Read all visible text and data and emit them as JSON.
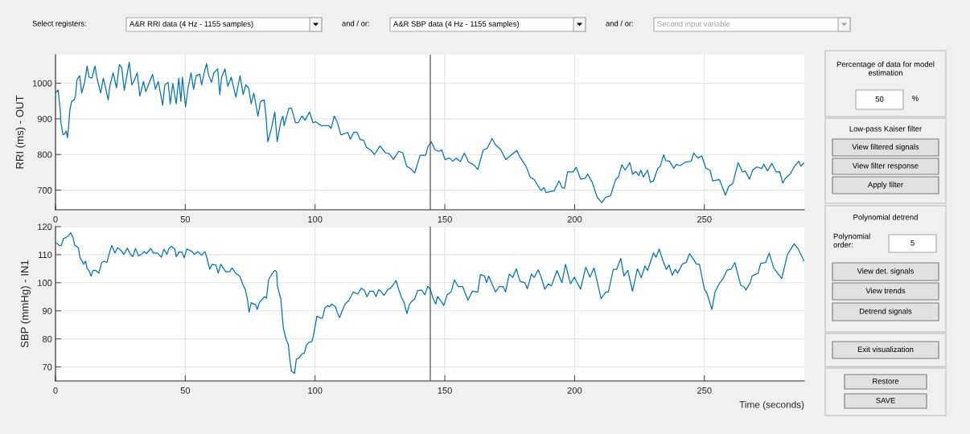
{
  "chart_data": [
    {
      "type": "line",
      "ylabel": "RRI (ms) - OUT",
      "color": "#0072bd",
      "x": [
        0,
        1.0,
        1.8,
        2.1,
        2.9,
        3.6,
        4.1,
        4.6,
        5.0,
        5.5,
        6.2,
        7.2,
        7.7,
        8.3,
        9.3,
        10.1,
        11.2,
        12.2,
        12.9,
        14.0,
        15.2,
        16.0,
        17.4,
        18.4,
        19.3,
        20.3,
        20.9,
        22.2,
        23.5,
        24.6,
        25.5,
        26.5,
        27.7,
        28.4,
        29.4,
        30.2,
        31.5,
        32.5,
        33.9,
        34.8,
        35.8,
        37.4,
        38.5,
        39.6,
        41.3,
        42.1,
        43.4,
        44.2,
        45.2,
        46.5,
        47.5,
        48.3,
        48.9,
        50.1,
        51.1,
        52.2,
        53.2,
        54.2,
        55.6,
        56.3,
        57.3,
        58.2,
        58.9,
        60.1,
        61.0,
        62.5,
        63.3,
        64.0,
        65.3,
        66.4,
        67.7,
        69.5,
        71.1,
        72.3,
        73.3,
        74.4,
        75.4,
        76.4,
        78.0,
        79.0,
        80.4,
        81.1,
        81.8,
        83.1,
        84.5,
        85.4,
        86.8,
        87.6,
        88.1,
        88.8,
        89.9,
        90.9,
        92.5,
        93.5,
        95.0,
        96.1,
        97.9,
        99.2,
        100.2,
        102.3,
        105.4,
        106.2,
        107.4,
        108.5,
        110.0,
        112.6,
        113.6,
        114.9,
        116.2,
        117.3,
        118.8,
        119.8,
        121.4,
        122.9,
        125.0,
        127.1,
        128.6,
        130.2,
        132.2,
        133.8,
        135.3,
        136.9,
        138.4,
        140.5,
        142.6,
        143.6,
        144.8,
        146.2,
        147.7,
        148.8,
        150.1,
        151.8,
        153.1,
        154.4,
        156.0,
        157.5,
        159.1,
        161.2,
        162.7,
        164.8,
        166.3,
        168.2,
        169.4,
        171.5,
        173.5,
        175.6,
        177.7,
        179.2,
        181.3,
        182.9,
        184.4,
        187.0,
        188.2,
        189.0,
        192.1,
        194.0,
        195.2,
        196.1,
        197.3,
        199.4,
        200.6,
        202.3,
        204.0,
        205.0,
        206.8,
        208.7,
        210.5,
        212.0,
        213.8,
        215.9,
        216.9,
        218.2,
        219.5,
        221.3,
        222.3,
        223.7,
        224.7,
        225.5,
        226.5,
        228.1,
        229.2,
        230.4,
        232.0,
        233.0,
        234.3,
        235.1,
        236.6,
        238.2,
        239.2,
        240.7,
        242.8,
        244.9,
        245.9,
        247.5,
        249.0,
        250.6,
        252.2,
        253.2,
        255.8,
        258.1,
        259.4,
        260.9,
        263.0,
        264.7,
        265.7,
        267.4,
        268.6,
        270.2,
        272.2,
        272.9,
        274.3,
        276.0,
        277.7,
        279.0,
        280.2,
        281.2,
        283.1,
        284.9,
        286.4,
        287.2,
        288.3
      ],
      "values": [
        972,
        981,
        927,
        889,
        855,
        858,
        866,
        847,
        874,
        923,
        949,
        953,
        964,
        1010,
        1021,
        972,
        1002,
        1048,
        1017,
        1014,
        1048,
        1014,
        972,
        1014,
        987,
        953,
        991,
        1029,
        987,
        1052,
        1045,
        980,
        1029,
        1059,
        995,
        1005,
        1029,
        964,
        1005,
        976,
        995,
        1025,
        983,
        1005,
        938,
        995,
        1002,
        942,
        999,
        942,
        1014,
        949,
        1017,
        934,
        987,
        1029,
        983,
        1021,
        1025,
        995,
        1029,
        1055,
        1025,
        1002,
        1029,
        1040,
        968,
        1017,
        1040,
        991,
        1017,
        961,
        1021,
        968,
        995,
        987,
        942,
        972,
        908,
        949,
        953,
        908,
        836,
        870,
        919,
        836,
        892,
        908,
        881,
        900,
        930,
        930,
        889,
        889,
        908,
        896,
        919,
        889,
        892,
        881,
        881,
        873,
        908,
        892,
        855,
        862,
        843,
        862,
        862,
        843,
        839,
        820,
        813,
        800,
        824,
        805,
        802,
        786,
        809,
        805,
        767,
        760,
        748,
        798,
        798,
        824,
        836,
        813,
        809,
        813,
        786,
        790,
        781,
        790,
        780,
        804,
        779,
        771,
        758,
        813,
        817,
        845,
        828,
        814,
        786,
        799,
        811,
        790,
        767,
        736,
        730,
        699,
        707,
        693,
        698,
        726,
        707,
        705,
        751,
        751,
        764,
        731,
        733,
        745,
        722,
        680,
        665,
        680,
        684,
        731,
        737,
        771,
        756,
        777,
        745,
        752,
        741,
        756,
        737,
        756,
        722,
        726,
        760,
        767,
        799,
        783,
        781,
        761,
        772,
        769,
        779,
        781,
        804,
        790,
        796,
        761,
        756,
        726,
        730,
        686,
        711,
        718,
        777,
        751,
        754,
        731,
        756,
        765,
        761,
        773,
        754,
        775,
        751,
        752,
        720,
        733,
        746,
        769,
        781,
        767,
        776
      ],
      "xlim": [
        0,
        288.5
      ],
      "ylim": [
        645,
        1080
      ],
      "xticks": [
        0,
        50,
        100,
        150,
        200,
        250
      ],
      "yticks": [
        700,
        800,
        900,
        1000
      ],
      "grid": true,
      "ref_lines": [
        {
          "axis": "x",
          "value": 144.4,
          "color": "#404040"
        }
      ]
    },
    {
      "type": "line",
      "ylabel": "SBP (mmHg) - IN1",
      "xlabel": "Time (seconds)",
      "color": "#0072bd",
      "x": [
        0,
        0.8,
        1.5,
        2.3,
        3.1,
        4.1,
        5.0,
        5.9,
        6.7,
        7.4,
        8.8,
        9.5,
        10.3,
        10.8,
        11.6,
        12.2,
        12.9,
        13.7,
        14.5,
        15.5,
        16.7,
        17.8,
        18.8,
        19.8,
        20.9,
        21.7,
        22.9,
        23.9,
        25.3,
        26.3,
        27.7,
        28.9,
        29.8,
        30.8,
        32.0,
        33.1,
        34.1,
        35.1,
        36.7,
        37.7,
        39.3,
        40.8,
        41.8,
        42.9,
        43.6,
        44.7,
        46.0,
        46.5,
        47.7,
        48.8,
        49.6,
        50.6,
        52.7,
        53.5,
        54.8,
        56.3,
        57.6,
        58.4,
        59.4,
        60.4,
        61.8,
        62.7,
        63.7,
        64.6,
        65.6,
        67.1,
        68.0,
        69.4,
        71.0,
        72.3,
        73.1,
        73.9,
        74.6,
        75.4,
        76.3,
        77.0,
        77.7,
        78.5,
        79.8,
        80.6,
        81.3,
        82.1,
        83.2,
        84.5,
        85.2,
        85.5,
        86.8,
        87.8,
        88.8,
        89.7,
        90.4,
        90.9,
        92.1,
        92.8,
        93.8,
        95.0,
        95.9,
        96.6,
        97.6,
        98.7,
        99.2,
        100.0,
        100.7,
        102.1,
        102.8,
        103.8,
        104.8,
        105.6,
        106.4,
        107.9,
        108.5,
        109.5,
        110.2,
        111.6,
        113.1,
        114.7,
        116.5,
        117.8,
        119.1,
        120.0,
        121.1,
        122.4,
        123.5,
        124.5,
        125.3,
        126.6,
        128.1,
        128.9,
        130.0,
        131.2,
        132.2,
        133.3,
        134.3,
        135.4,
        136.4,
        137.2,
        138.4,
        139.5,
        141.0,
        142.3,
        143.4,
        144.4,
        145.5,
        146.5,
        147.2,
        148.6,
        149.6,
        150.9,
        152.4,
        153.7,
        155.2,
        156.9,
        158.9,
        160.6,
        162.7,
        163.7,
        165.3,
        166.1,
        166.9,
        169.5,
        171.0,
        172.5,
        173.4,
        174.8,
        176.2,
        177.5,
        179.0,
        180.8,
        181.8,
        183.4,
        184.4,
        186.0,
        187.2,
        188.5,
        189.9,
        191.1,
        193.2,
        195.1,
        196.5,
        198.4,
        199.9,
        202.3,
        204.3,
        205.9,
        207.5,
        210.2,
        212.0,
        213.0,
        214.9,
        216.2,
        217.8,
        219.0,
        220.5,
        222.3,
        224.2,
        225.7,
        227.1,
        228.1,
        230.4,
        231.4,
        232.6,
        234.0,
        235.3,
        236.4,
        237.6,
        238.8,
        239.7,
        241.5,
        243.0,
        244.3,
        245.9,
        246.9,
        248.1,
        250.0,
        251.0,
        252.9,
        254.1,
        255.7,
        257.2,
        258.8,
        260.3,
        261.7,
        264.0,
        265.3,
        266.0,
        267.6,
        268.4,
        270.7,
        271.7,
        273.6,
        275.0,
        276.7,
        279.8,
        282.0,
        284.6,
        286.2,
        288.3
      ],
      "values": [
        114.2,
        113.9,
        113.2,
        113.4,
        115.8,
        116.1,
        116.8,
        117.8,
        116.3,
        113.4,
        112.5,
        108.7,
        107.7,
        106.6,
        107.7,
        105.0,
        104.4,
        102.4,
        104.4,
        104.4,
        103.4,
        107.2,
        107.7,
        107.2,
        111.1,
        113.3,
        110.6,
        112.5,
        111.5,
        110.1,
        112.3,
        110.1,
        109.3,
        112.2,
        109.6,
        110.1,
        111.1,
        110.4,
        112.2,
        110.6,
        110.6,
        109.1,
        112.0,
        110.1,
        112.0,
        113.0,
        112.0,
        109.3,
        111.1,
        110.8,
        108.9,
        112.0,
        111.1,
        110.1,
        111.1,
        109.8,
        111.1,
        108.7,
        104.8,
        106.6,
        106.3,
        103.4,
        106.6,
        105.3,
        103.9,
        103.9,
        105.3,
        103.4,
        102.4,
        99.1,
        97.7,
        94.3,
        89.5,
        92.9,
        92.4,
        92.4,
        90.5,
        92.9,
        94.3,
        95.1,
        94.5,
        101.1,
        102.9,
        104.4,
        103.9,
        98.7,
        94.3,
        83.8,
        80.0,
        78.0,
        71.8,
        68.5,
        67.7,
        72.8,
        73.2,
        74.7,
        74.9,
        77.6,
        78.8,
        79.0,
        80.4,
        84.3,
        88.1,
        87.4,
        87.4,
        91.0,
        91.9,
        91.4,
        92.4,
        91.4,
        89.5,
        87.6,
        89.5,
        92.4,
        93.8,
        96.7,
        96.0,
        98.1,
        97.2,
        95.0,
        97.0,
        97.0,
        95.1,
        97.5,
        97.0,
        95.5,
        97.7,
        97.9,
        99.1,
        100.8,
        97.7,
        94.8,
        92.9,
        89.0,
        92.4,
        93.3,
        94.3,
        97.2,
        97.4,
        95.7,
        98.7,
        97.7,
        94.3,
        92.4,
        95.1,
        93.3,
        91.9,
        95.7,
        96.7,
        101.0,
        98.6,
        98.6,
        93.8,
        97.0,
        96.7,
        102.9,
        102.4,
        100.0,
        102.4,
        96.7,
        98.6,
        98.6,
        96.7,
        103.1,
        101.9,
        105.0,
        100.5,
        100.0,
        97.9,
        103.1,
        101.9,
        104.6,
        101.8,
        97.7,
        99.6,
        98.9,
        104.4,
        100.0,
        106.6,
        99.6,
        102.0,
        97.7,
        105.6,
        102.0,
        105.3,
        94.3,
        96.7,
        96.7,
        104.8,
        104.8,
        108.7,
        102.4,
        104.4,
        97.0,
        105.0,
        101.8,
        106.0,
        104.4,
        110.6,
        109.1,
        112.0,
        107.9,
        104.8,
        106.3,
        102.7,
        104.8,
        103.4,
        106.7,
        107.2,
        110.4,
        108.2,
        106.7,
        106.6,
        97.7,
        96.2,
        90.5,
        96.7,
        99.6,
        101.5,
        104.6,
        104.8,
        107.2,
        99.1,
        98.6,
        97.4,
        99.9,
        102.4,
        103.4,
        106.9,
        107.2,
        110.6,
        105.3,
        101.5,
        110.1,
        113.9,
        112.0,
        107.9
      ],
      "xlim": [
        0,
        288.5
      ],
      "ylim": [
        65,
        120
      ],
      "xticks": [
        0,
        50,
        100,
        150,
        200,
        250
      ],
      "yticks": [
        70,
        80,
        90,
        100,
        110,
        120
      ],
      "grid": true,
      "ref_lines": [
        {
          "axis": "x",
          "value": 144.4,
          "color": "#404040"
        }
      ]
    },
    {
      "type": "other",
      "annotations": [
        "Select registers:",
        "A&R RRI data (4 Hz - 1155 samples)",
        "and / or:",
        "A&R SBP data (4 Hz - 1155 samples)",
        "and / or:",
        "Second input variable",
        "Percentage of data for model\nestimation",
        "50",
        "%",
        "Low-pass Kaiser filter",
        "View filtered signals",
        "View filter response",
        "Apply filter",
        "Polynomial detrend",
        "Polynomial\norder:",
        "5",
        "View det. signals",
        "View trends",
        "Detrend signals",
        "Exit visualization",
        "Restore",
        "SAVE"
      ]
    }
  ]
}
